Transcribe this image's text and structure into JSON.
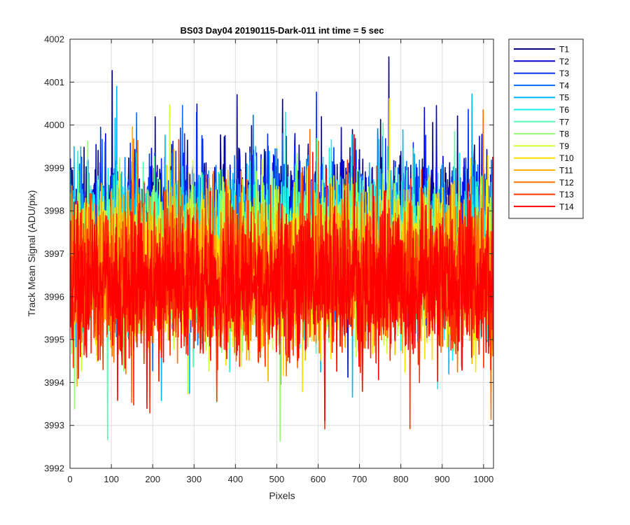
{
  "chart_data": {
    "type": "line",
    "title": "BS03 Day04 20190115-Dark-011 int time = 5 sec",
    "xlabel": "Pixels",
    "ylabel": "Track Mean Signal (ADU/pix)",
    "xlim": [
      0,
      1024
    ],
    "ylim": [
      3992,
      4002
    ],
    "xticks": [
      "0",
      "100",
      "200",
      "300",
      "400",
      "500",
      "600",
      "700",
      "800",
      "900",
      "1000"
    ],
    "yticks": [
      "3992",
      "3993",
      "3994",
      "3995",
      "3996",
      "3997",
      "3998",
      "3999",
      "4000",
      "4001",
      "4002"
    ],
    "grid": true,
    "legend_position": "outside-top-right",
    "n_points": 1024,
    "series": [
      {
        "name": "T1",
        "color": "#00007F",
        "center": 3997.7
      },
      {
        "name": "T2",
        "color": "#0000D0",
        "center": 3997.5
      },
      {
        "name": "T3",
        "color": "#0030FF",
        "center": 3997.4
      },
      {
        "name": "T4",
        "color": "#0070FF",
        "center": 3997.3
      },
      {
        "name": "T5",
        "color": "#00B4FF",
        "center": 3997.2
      },
      {
        "name": "T6",
        "color": "#10F0F0",
        "center": 3997.1
      },
      {
        "name": "T7",
        "color": "#50FFB0",
        "center": 3997.0
      },
      {
        "name": "T8",
        "color": "#90FF70",
        "center": 3996.9
      },
      {
        "name": "T9",
        "color": "#D0FF30",
        "center": 3996.8
      },
      {
        "name": "T10",
        "color": "#FFE000",
        "center": 3996.7
      },
      {
        "name": "T11",
        "color": "#FFB000",
        "center": 3996.6
      },
      {
        "name": "T12",
        "color": "#FF7000",
        "center": 3996.5
      },
      {
        "name": "T13",
        "color": "#FF3000",
        "center": 3996.4
      },
      {
        "name": "T14",
        "color": "#FF0000",
        "center": 3996.3
      }
    ]
  }
}
